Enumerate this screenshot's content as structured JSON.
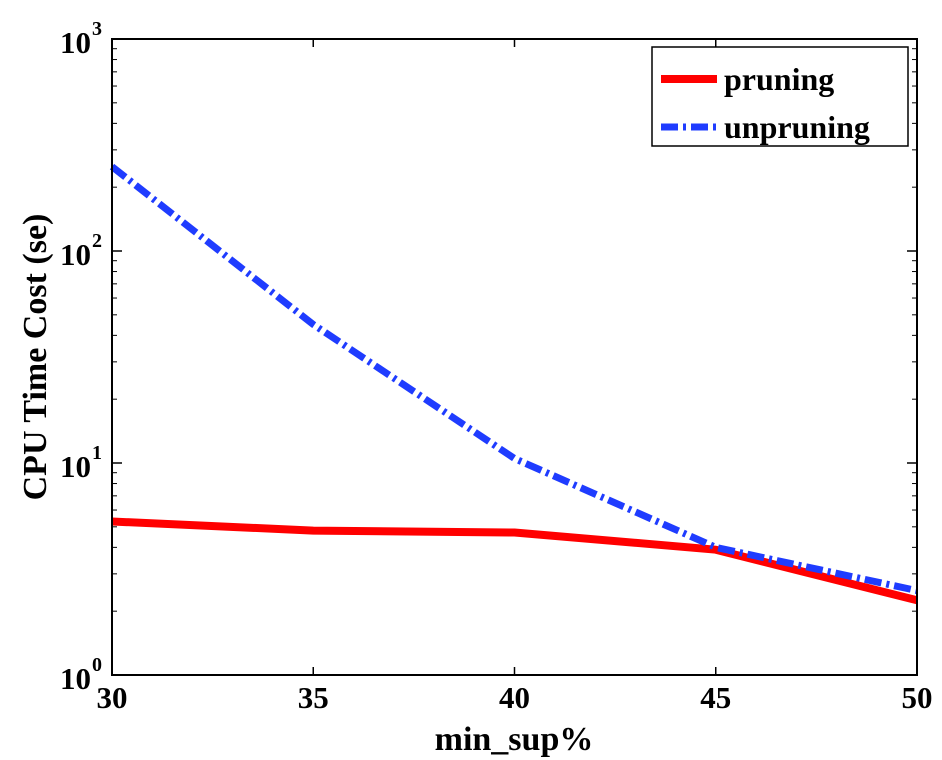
{
  "chart_data": {
    "type": "line",
    "title": "",
    "xlabel": "min_sup%",
    "ylabel": "CPU Time Cost (se)",
    "x": [
      30,
      35,
      40,
      45,
      50
    ],
    "xlim": [
      30,
      50
    ],
    "ylim": [
      1,
      1000
    ],
    "yscale": "log",
    "xticks": [
      {
        "value": 30,
        "label": "30"
      },
      {
        "value": 35,
        "label": "35"
      },
      {
        "value": 40,
        "label": "40"
      },
      {
        "value": 45,
        "label": "45"
      },
      {
        "value": 50,
        "label": "50"
      }
    ],
    "yticks": [
      {
        "value": 1,
        "base": "10",
        "exp": "0"
      },
      {
        "value": 10,
        "base": "10",
        "exp": "1"
      },
      {
        "value": 100,
        "base": "10",
        "exp": "2"
      },
      {
        "value": 1000,
        "base": "10",
        "exp": "3"
      }
    ],
    "grid": false,
    "legend_position": "top-right",
    "series": [
      {
        "name": "pruning",
        "values": [
          5.3,
          4.8,
          4.7,
          3.9,
          2.25
        ],
        "color": "#ff0000",
        "style": "solid"
      },
      {
        "name": "unpruning",
        "values": [
          250,
          45,
          10.5,
          4.0,
          2.5
        ],
        "color": "#1f3cff",
        "style": "dash-dot"
      }
    ]
  }
}
